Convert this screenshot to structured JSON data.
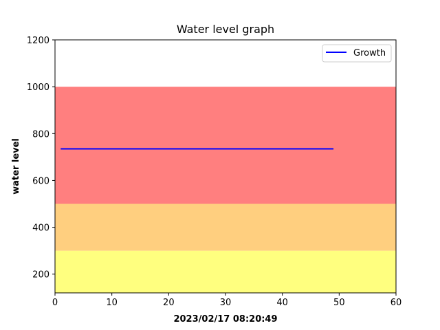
{
  "chart_data": {
    "type": "line",
    "title": "Water level graph",
    "xlabel": "2023/02/17 08:20:49",
    "ylabel": "water level",
    "xlim": [
      0,
      60
    ],
    "ylim": [
      120,
      1200
    ],
    "xticks": [
      0,
      10,
      20,
      30,
      40,
      50,
      60
    ],
    "yticks": [
      200,
      400,
      600,
      800,
      1000,
      1200
    ],
    "bands": [
      {
        "from": 120,
        "to": 300,
        "color": "#ffff7f"
      },
      {
        "from": 300,
        "to": 500,
        "color": "#ffcf7f"
      },
      {
        "from": 500,
        "to": 1000,
        "color": "#ff7f7f"
      }
    ],
    "series": [
      {
        "name": "Growth",
        "color": "#0000ff",
        "x": [
          1,
          49
        ],
        "y": [
          735,
          735
        ]
      }
    ],
    "legend": "top-right",
    "grid": false
  }
}
